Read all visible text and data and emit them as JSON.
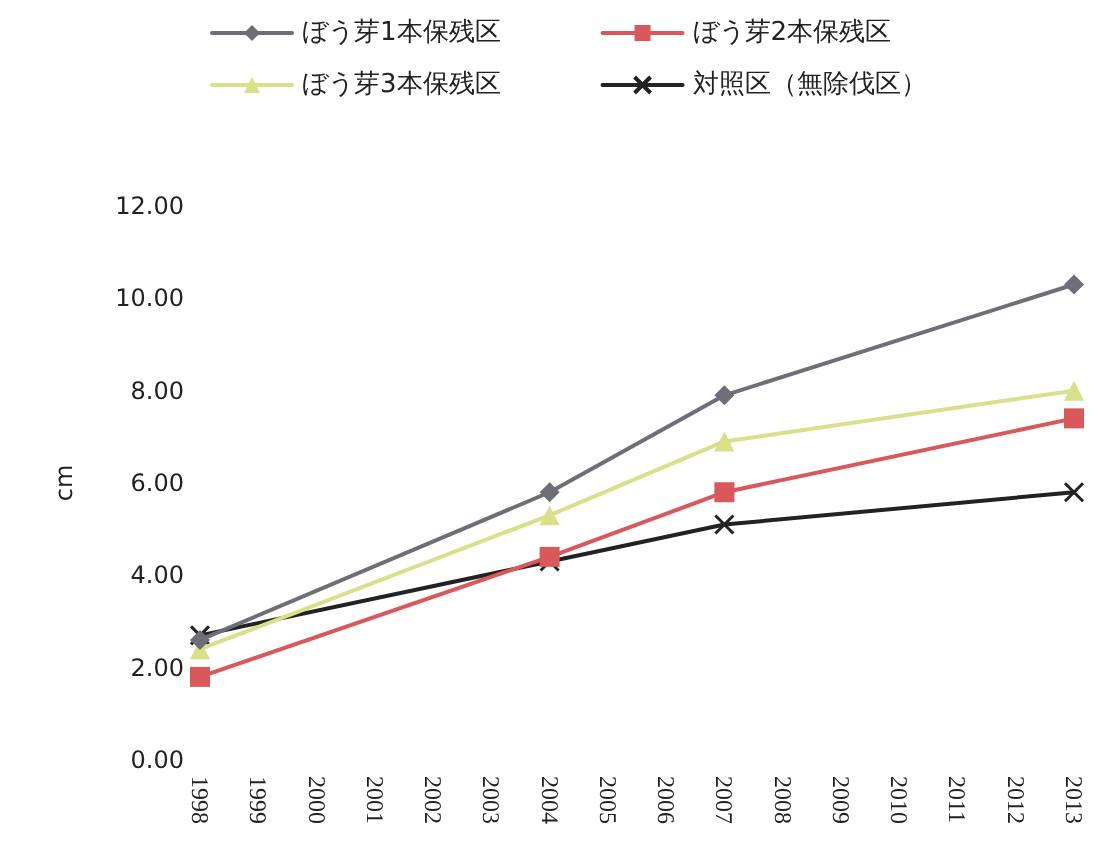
{
  "chart_data": {
    "type": "line",
    "ylabel": "cm",
    "xlim": [
      1998,
      2013
    ],
    "xticks": [
      1998,
      1999,
      2000,
      2001,
      2002,
      2003,
      2004,
      2005,
      2006,
      2007,
      2008,
      2009,
      2010,
      2011,
      2012,
      2013
    ],
    "ylim": [
      0,
      12
    ],
    "yticks": [
      {
        "value": 0,
        "label": "0.00"
      },
      {
        "value": 2,
        "label": "2.00"
      },
      {
        "value": 4,
        "label": "4.00"
      },
      {
        "value": 6,
        "label": "6.00"
      },
      {
        "value": 8,
        "label": "8.00"
      },
      {
        "value": 10,
        "label": "10.00"
      },
      {
        "value": 12,
        "label": "12.00"
      }
    ],
    "grid": false,
    "legend": "top",
    "series": [
      {
        "name": "ぼう芽1本保残区",
        "color": "#6e6e78",
        "marker": "diamond",
        "x": [
          1998,
          2004,
          2007,
          2013
        ],
        "values": [
          2.6,
          5.8,
          7.9,
          10.3
        ]
      },
      {
        "name": "ぼう芽2本保残区",
        "color": "#d9585a",
        "marker": "square",
        "x": [
          1998,
          2004,
          2007,
          2013
        ],
        "values": [
          1.8,
          4.4,
          5.8,
          7.4
        ]
      },
      {
        "name": "ぼう芽3本保残区",
        "color": "#d8e08a",
        "marker": "triangle",
        "x": [
          1998,
          2004,
          2007,
          2013
        ],
        "values": [
          2.4,
          5.3,
          6.9,
          8.0
        ]
      },
      {
        "name": "対照区（無除伐区）",
        "color": "#222222",
        "marker": "cross",
        "x": [
          1998,
          2004,
          2007,
          2013
        ],
        "values": [
          2.7,
          4.3,
          5.1,
          5.8
        ]
      }
    ]
  }
}
